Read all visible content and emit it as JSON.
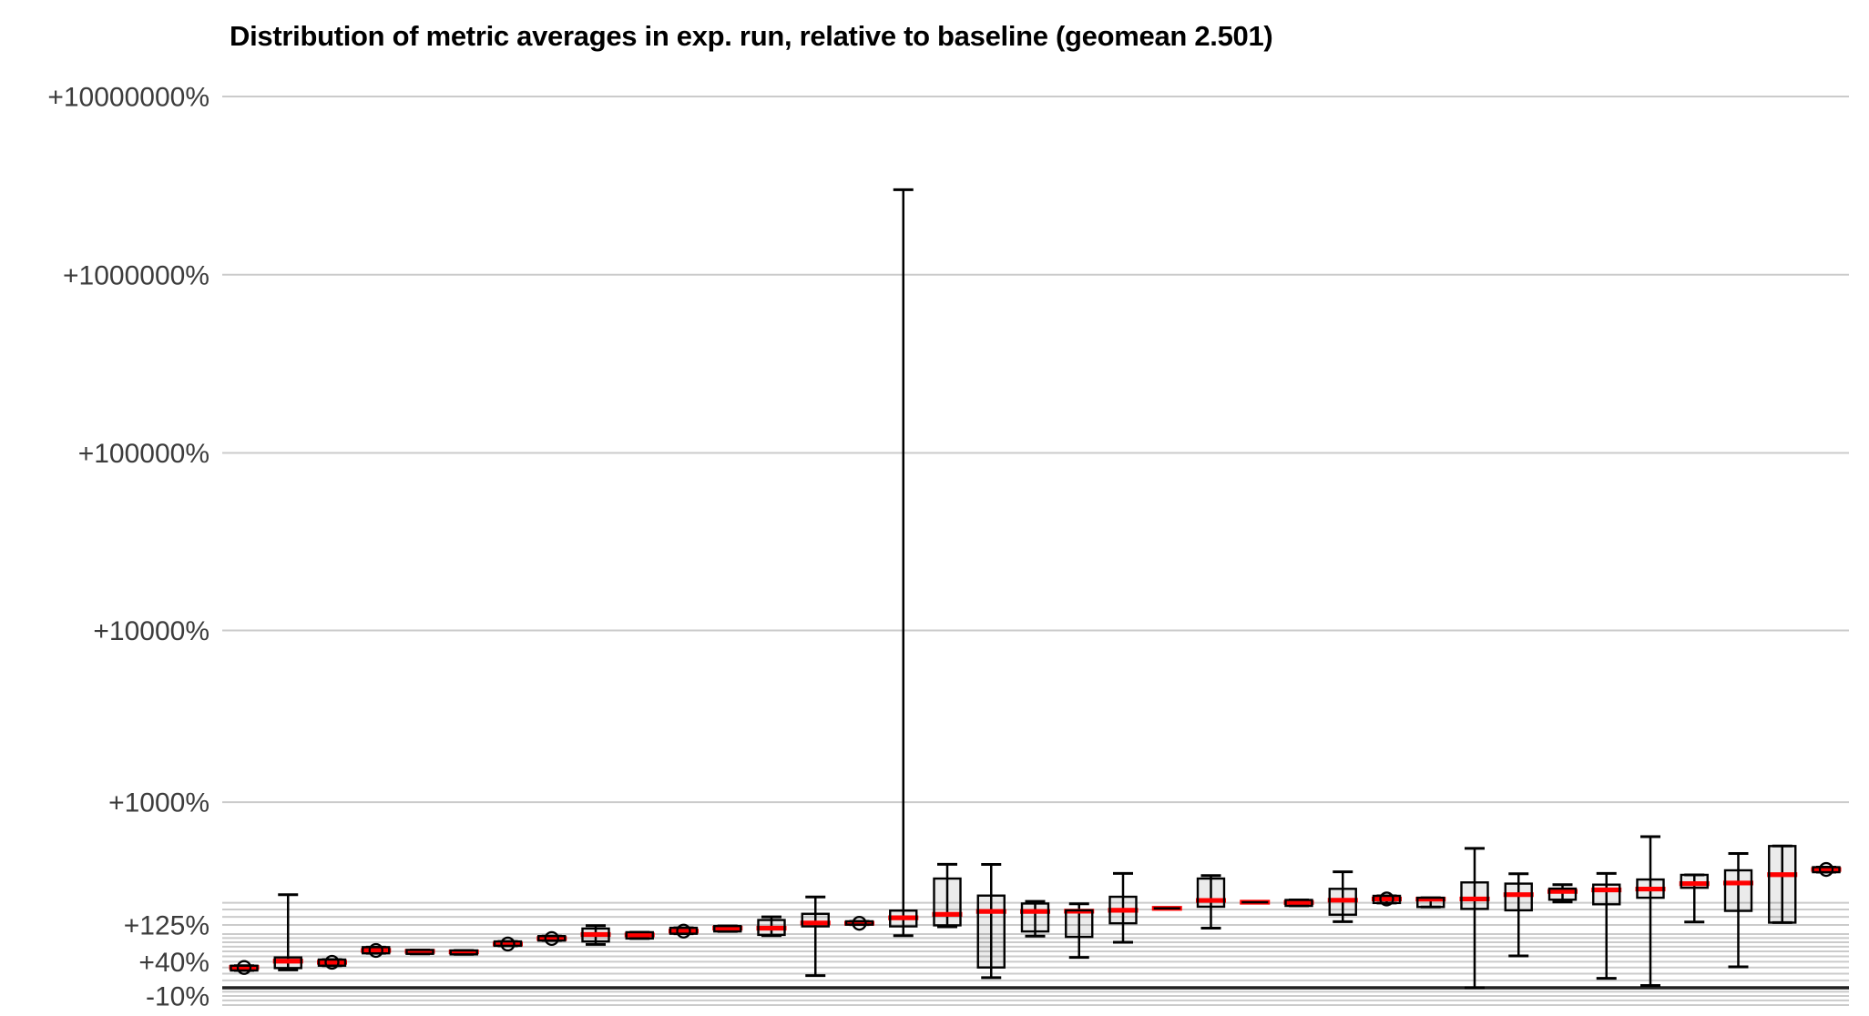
{
  "chart_data": {
    "type": "boxplot",
    "title": "Distribution of metric averages in exp. run, relative to baseline (geomean 2.501)",
    "geomean": 2.501,
    "unit": "%",
    "y_scale": "log10(1 + value/100)",
    "legend": "none",
    "x_axis": {
      "tick_labels": "none"
    },
    "y_axis": {
      "ticks": [
        {
          "label": "+10000000%",
          "value": 10000000
        },
        {
          "label": "+1000000%",
          "value": 1000000
        },
        {
          "label": "+100000%",
          "value": 100000
        },
        {
          "label": "+10000%",
          "value": 10000
        },
        {
          "label": "+1000%",
          "value": 1000
        },
        {
          "label": "+125%",
          "value": 125
        },
        {
          "label": "+40%",
          "value": 40
        },
        {
          "label": "-10%",
          "value": -10
        }
      ],
      "major_gridline_values": [
        1000,
        10000,
        100000,
        1000000,
        10000000
      ],
      "minor_gridline_values": [
        -20,
        -15,
        -10,
        -5,
        10,
        20,
        30,
        40,
        50,
        60,
        70,
        80,
        90,
        100,
        125,
        150,
        175,
        200
      ],
      "baseline_value": 0
    },
    "colors": {
      "median": "#ff0000",
      "box_stroke": "#000000",
      "box_fill": "rgba(0,0,0,0.08)",
      "gridline": "#cbcbcb",
      "baseline": "#222222",
      "tick_text": "#3c3c3c"
    },
    "boxes": [
      {
        "lo": 25,
        "q1": 25,
        "med": 30,
        "q3": 33,
        "hi": 33,
        "circle": true
      },
      {
        "lo": 26,
        "q1": 29,
        "med": 41,
        "q3": 48,
        "hi": 233
      },
      {
        "lo": 33,
        "q1": 33,
        "med": 39,
        "q3": 44,
        "hi": 44,
        "circle": true
      },
      {
        "lo": 56,
        "q1": 56,
        "med": 62,
        "q3": 69,
        "hi": 69,
        "circle": true
      },
      {
        "lo": 55,
        "q1": 55,
        "med": 60,
        "q3": 63,
        "hi": 63
      },
      {
        "lo": 54,
        "q1": 54,
        "med": 59,
        "q3": 62,
        "hi": 62
      },
      {
        "lo": 72,
        "q1": 72,
        "med": 76,
        "q3": 82,
        "hi": 82,
        "circle": true
      },
      {
        "lo": 84,
        "q1": 84,
        "med": 89,
        "q3": 95,
        "hi": 95,
        "circle": true
      },
      {
        "lo": 75,
        "q1": 82,
        "med": 99,
        "q3": 115,
        "hi": 123
      },
      {
        "lo": 89,
        "q1": 89,
        "med": 98,
        "q3": 105,
        "hi": 105
      },
      {
        "lo": 101,
        "q1": 101,
        "med": 108,
        "q3": 117,
        "hi": 117,
        "circle": true
      },
      {
        "lo": 107,
        "q1": 107,
        "med": 116,
        "q3": 122,
        "hi": 122
      },
      {
        "lo": 96,
        "q1": 98,
        "med": 116,
        "q3": 140,
        "hi": 150
      },
      {
        "lo": 17,
        "q1": 121,
        "med": 131,
        "q3": 160,
        "hi": 223
      },
      {
        "lo": 126,
        "q1": 126,
        "med": 130,
        "q3": 136,
        "hi": 136,
        "circle": true
      },
      {
        "lo": 96,
        "q1": 121,
        "med": 147,
        "q3": 171,
        "hi": 3000000
      },
      {
        "lo": 120,
        "q1": 124,
        "med": 158,
        "q3": 310,
        "hi": 393
      },
      {
        "lo": 14,
        "q1": 30,
        "med": 168,
        "q3": 229,
        "hi": 392
      },
      {
        "lo": 95,
        "q1": 107,
        "med": 168,
        "q3": 197,
        "hi": 205
      },
      {
        "lo": 48,
        "q1": 93,
        "med": 169,
        "q3": 172,
        "hi": 196
      },
      {
        "lo": 80,
        "q1": 130,
        "med": 172,
        "q3": 224,
        "hi": 338
      },
      {
        "lo": 179,
        "q1": 179,
        "med": 179,
        "q3": 179,
        "hi": 179
      },
      {
        "lo": 116,
        "q1": 185,
        "med": 209,
        "q3": 310,
        "hi": 326
      },
      {
        "lo": 202,
        "q1": 202,
        "med": 202,
        "q3": 202,
        "hi": 202
      },
      {
        "lo": 188,
        "q1": 188,
        "med": 201,
        "q3": 211,
        "hi": 211
      },
      {
        "lo": 135,
        "q1": 157,
        "med": 210,
        "q3": 259,
        "hi": 347
      },
      {
        "lo": 199,
        "q1": 199,
        "med": 215,
        "q3": 228,
        "hi": 228,
        "circle": true
      },
      {
        "lo": 184,
        "q1": 184,
        "med": 214,
        "q3": 220,
        "hi": 220
      },
      {
        "lo": 0,
        "q1": 177,
        "med": 215,
        "q3": 290,
        "hi": 505
      },
      {
        "lo": 51,
        "q1": 172,
        "med": 233,
        "q3": 284,
        "hi": 336
      },
      {
        "lo": 203,
        "q1": 212,
        "med": 247,
        "q3": 260,
        "hi": 279
      },
      {
        "lo": 13,
        "q1": 194,
        "med": 254,
        "q3": 279,
        "hi": 338
      },
      {
        "lo": 3,
        "q1": 220,
        "med": 258,
        "q3": 305,
        "hi": 604
      },
      {
        "lo": 134,
        "q1": 264,
        "med": 284,
        "q3": 330,
        "hi": 330
      },
      {
        "lo": 31,
        "q1": 170,
        "med": 287,
        "q3": 356,
        "hi": 467
      },
      {
        "lo": 132,
        "q1": 132,
        "med": 331,
        "q3": 524,
        "hi": 524
      },
      {
        "lo": 345,
        "q1": 345,
        "med": 361,
        "q3": 375,
        "hi": 375,
        "circle": true
      }
    ]
  },
  "layout_note": "values are percent change vs baseline; lo/hi = whisker ends, q1/q3 = box, med = red line, circle = open mean marker"
}
